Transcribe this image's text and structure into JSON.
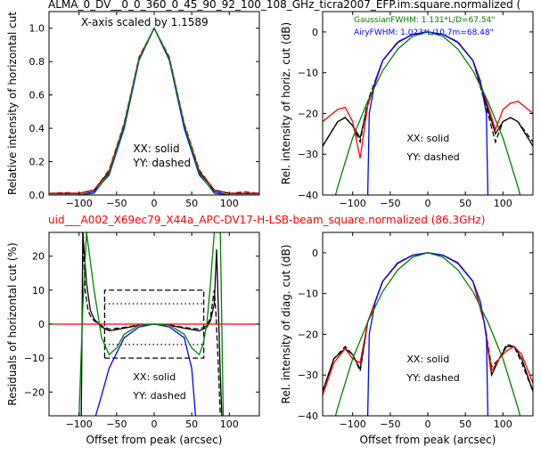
{
  "figure": {
    "top_title": "ALMA_0_DV__0_0_360_0_45_90_92_100_108_GHz_ticra2007_EFP.im.square.normalized (",
    "mid_title": "uid___A002_X69ec79_X44a_APC-DV17-H-LSB-beam_square.normalized (86.3GHz)",
    "mid_title_color": "#ff0000"
  },
  "chart_data": [
    {
      "type": "line",
      "id": "top-left",
      "annotation": "X-axis scaled by 1.1589",
      "xlim": [
        -140,
        140
      ],
      "ylim": [
        0,
        1.1
      ],
      "xticks": [
        -100,
        -50,
        0,
        50,
        100
      ],
      "yticks": [
        0.0,
        0.2,
        0.4,
        0.6,
        0.8,
        1.0
      ],
      "xtick_labels": [
        "−100",
        "−50",
        "0",
        "50",
        "100"
      ],
      "ytick_labels": [
        "0.0",
        "0.2",
        "0.4",
        "0.6",
        "0.8",
        "1.0"
      ],
      "ylabel": "Relative intensity of horizontal cut",
      "xlabel": "",
      "text": [
        "XX: solid",
        "YY: dashed"
      ],
      "series": [
        {
          "color": "#000000",
          "style": "solid",
          "x": [
            -140,
            -120,
            -100,
            -80,
            -60,
            -40,
            -20,
            0,
            20,
            40,
            60,
            80,
            100,
            120,
            140
          ],
          "y": [
            0.01,
            0.01,
            0.01,
            0.03,
            0.14,
            0.42,
            0.82,
            1.0,
            0.82,
            0.42,
            0.14,
            0.03,
            0.01,
            0.01,
            0.01
          ]
        },
        {
          "color": "#000000",
          "style": "dashed",
          "x": [
            -140,
            -120,
            -100,
            -80,
            -60,
            -40,
            -20,
            0,
            20,
            40,
            60,
            80,
            100,
            120,
            140
          ],
          "y": [
            0.01,
            0.01,
            0.01,
            0.03,
            0.15,
            0.43,
            0.82,
            1.0,
            0.82,
            0.43,
            0.15,
            0.03,
            0.01,
            0.01,
            0.01
          ]
        },
        {
          "color": "#ff0000",
          "style": "dashed",
          "x": [
            -140,
            -120,
            -100,
            -80,
            -60,
            -40,
            -20,
            0,
            20,
            40,
            60,
            80,
            100,
            120,
            140
          ],
          "y": [
            0.01,
            0.015,
            0.01,
            0.03,
            0.15,
            0.43,
            0.83,
            1.0,
            0.83,
            0.43,
            0.15,
            0.03,
            0.01,
            0.02,
            0.01
          ]
        },
        {
          "color": "#0000ff",
          "style": "solid",
          "x": [
            -140,
            -120,
            -100,
            -80,
            -60,
            -40,
            -20,
            0,
            20,
            40,
            60,
            80,
            100,
            120,
            140
          ],
          "y": [
            0.0,
            0.0,
            0.0,
            0.02,
            0.12,
            0.4,
            0.81,
            1.0,
            0.81,
            0.4,
            0.12,
            0.02,
            0.0,
            0.0,
            0.0
          ]
        },
        {
          "color": "#008000",
          "style": "solid",
          "x": [
            -140,
            -120,
            -100,
            -80,
            -60,
            -40,
            -20,
            0,
            20,
            40,
            60,
            80,
            100,
            120,
            140
          ],
          "y": [
            0.0,
            0.0,
            0.0,
            0.01,
            0.13,
            0.42,
            0.82,
            1.0,
            0.82,
            0.42,
            0.13,
            0.01,
            0.0,
            0.0,
            0.0
          ]
        }
      ]
    },
    {
      "type": "line",
      "id": "top-right",
      "xlim": [
        -140,
        140
      ],
      "ylim": [
        -40,
        5
      ],
      "xticks": [
        -100,
        -50,
        0,
        50,
        100
      ],
      "yticks": [
        -40,
        -30,
        -20,
        -10,
        0
      ],
      "xtick_labels": [
        "−100",
        "−50",
        "0",
        "50",
        "100"
      ],
      "ytick_labels": [
        "−40",
        "−30",
        "−20",
        "−10",
        "0"
      ],
      "ylabel": "Rel. intensity of horiz. cut (dB)",
      "xlabel": "",
      "legend": [
        {
          "label": "GaussianFWHM: 1.131*L/D=67.54\"",
          "color": "#008000"
        },
        {
          "label": "AiryFWHM: 1.023*L/10.7m=68.48\"",
          "color": "#0000ff"
        }
      ],
      "text": [
        "XX: solid",
        "YY: dashed"
      ],
      "series": [
        {
          "color": "#000000",
          "style": "solid",
          "x": [
            -140,
            -120,
            -110,
            -100,
            -90,
            -80,
            -60,
            -40,
            -20,
            0,
            20,
            40,
            60,
            80,
            90,
            100,
            110,
            120,
            140
          ],
          "y": [
            -28,
            -22,
            -21,
            -23,
            -26,
            -18,
            -7,
            -2.5,
            -0.6,
            0,
            -0.6,
            -2.5,
            -7,
            -19,
            -25,
            -22,
            -21,
            -22,
            -28
          ]
        },
        {
          "color": "#000000",
          "style": "dashed",
          "x": [
            -140,
            -120,
            -110,
            -100,
            -90,
            -80,
            -60,
            -40,
            -20,
            0,
            20,
            40,
            60,
            80,
            90,
            100,
            110,
            120,
            140
          ],
          "y": [
            -28,
            -22,
            -21,
            -23,
            -27,
            -17,
            -7,
            -2.4,
            -0.6,
            0,
            -0.6,
            -2.4,
            -7,
            -20,
            -27,
            -22,
            -21,
            -22,
            -27
          ]
        },
        {
          "color": "#ff0000",
          "style": "solid",
          "x": [
            -140,
            -120,
            -110,
            -100,
            -90,
            -80,
            -60,
            -40,
            -20,
            0,
            20,
            40,
            60,
            80,
            90,
            100,
            110,
            120,
            140
          ],
          "y": [
            -22,
            -19,
            -18.5,
            -22,
            -31,
            -18,
            -7,
            -2.5,
            -0.6,
            0,
            -0.6,
            -2.5,
            -7,
            -18,
            -24,
            -19,
            -17.5,
            -17,
            -20
          ]
        },
        {
          "color": "#0000ff",
          "style": "solid",
          "x": [
            -80,
            -78,
            -70,
            -60,
            -40,
            -20,
            0,
            20,
            40,
            60,
            70,
            78,
            80
          ],
          "y": [
            -40,
            -20,
            -12,
            -7,
            -2.6,
            -0.6,
            0,
            -0.6,
            -2.6,
            -7,
            -12,
            -20,
            -40
          ]
        },
        {
          "color": "#008000",
          "style": "solid",
          "x": [
            -140,
            -120,
            -100,
            -80,
            -60,
            -40,
            -20,
            0,
            20,
            40,
            60,
            80,
            100,
            120,
            140
          ],
          "y": [
            -52,
            -38,
            -26,
            -17,
            -9.5,
            -4.2,
            -1.05,
            0,
            -1.05,
            -4.2,
            -9.5,
            -17,
            -26,
            -38,
            -52
          ]
        }
      ]
    },
    {
      "type": "line",
      "id": "bottom-left",
      "xlim": [
        -140,
        140
      ],
      "ylim": [
        -27,
        27
      ],
      "xticks": [
        -100,
        -50,
        0,
        50,
        100
      ],
      "yticks": [
        -20,
        -10,
        0,
        10,
        20
      ],
      "xtick_labels": [
        "−100",
        "−50",
        "0",
        "50",
        "100"
      ],
      "ytick_labels": [
        "−20",
        "−10",
        "0",
        "10",
        "20"
      ],
      "ylabel": "Residuals of horizontal cut (%)",
      "xlabel": "Offset from peak (arcsec)",
      "text": [
        "XX: solid",
        "YY: dashed"
      ],
      "series": [
        {
          "color": "#000000",
          "style": "solid",
          "x": [
            -97,
            -95,
            -90,
            -85,
            -80,
            -70,
            -60,
            -40,
            -20,
            0,
            20,
            40,
            60,
            70,
            75,
            80,
            83,
            85,
            88,
            90
          ],
          "y": [
            -27,
            27,
            12,
            4,
            1.5,
            -0.8,
            -2,
            -1.2,
            -0.3,
            0,
            -0.3,
            -1.2,
            -2,
            -1,
            1,
            6,
            22,
            8,
            -15,
            -27
          ]
        },
        {
          "color": "#000000",
          "style": "dashed",
          "x": [
            -95,
            -92,
            -88,
            -84,
            -80,
            -70,
            -60,
            -40,
            -20,
            0,
            20,
            40,
            60,
            70,
            75,
            80,
            82,
            85,
            88
          ],
          "y": [
            27,
            10,
            4,
            2,
            1,
            -0.5,
            -1.5,
            -1,
            -0.2,
            0,
            -0.2,
            -1,
            -1.5,
            -0.5,
            2,
            10,
            4,
            -10,
            -27
          ]
        },
        {
          "color": "#ff0000",
          "style": "solid",
          "x": [
            -140,
            140
          ],
          "y": [
            0,
            0
          ]
        },
        {
          "color": "#0000ff",
          "style": "solid",
          "x": [
            -78,
            -70,
            -60,
            -40,
            -20,
            0,
            20,
            40,
            50,
            55
          ],
          "y": [
            -27,
            -21,
            -13,
            -4,
            -0.8,
            0,
            -0.8,
            -4,
            -13,
            -27
          ]
        },
        {
          "color": "#008000",
          "style": "solid",
          "x": [
            -100,
            -95,
            -90,
            -80,
            -70,
            -60,
            -50,
            -40,
            -20,
            0,
            20,
            40,
            50,
            60,
            65,
            70,
            75,
            80,
            88,
            92
          ],
          "y": [
            -27,
            5,
            27,
            10,
            -4,
            -9,
            -7,
            -3,
            -0.3,
            0,
            -0.3,
            -3,
            -7,
            -9,
            -6,
            0,
            12,
            27,
            27,
            -27
          ]
        }
      ],
      "reference_lines": [
        {
          "color": "#000000",
          "style": "dashed",
          "x": [
            -66,
            -66,
            66,
            66,
            -66
          ],
          "y": [
            -10,
            10,
            10,
            -10,
            -10
          ]
        },
        {
          "color": "#000000",
          "style": "dotted",
          "x": [
            -66,
            66
          ],
          "y": [
            6,
            6
          ]
        },
        {
          "color": "#000000",
          "style": "dotted",
          "x": [
            -66,
            66
          ],
          "y": [
            -6,
            -6
          ]
        }
      ]
    },
    {
      "type": "line",
      "id": "bottom-right",
      "xlim": [
        -140,
        140
      ],
      "ylim": [
        -40,
        5
      ],
      "xticks": [
        -100,
        -50,
        0,
        50,
        100
      ],
      "yticks": [
        -40,
        -30,
        -20,
        -10,
        0
      ],
      "xtick_labels": [
        "−100",
        "−50",
        "0",
        "50",
        "100"
      ],
      "ytick_labels": [
        "−40",
        "−30",
        "−20",
        "−10",
        "0"
      ],
      "ylabel": "Rel. intensity of diag. cut (dB)",
      "xlabel": "Offset from peak (arcsec)",
      "text": [
        "XX: solid",
        "YY: dashed"
      ],
      "series": [
        {
          "color": "#000000",
          "style": "solid",
          "x": [
            -140,
            -125,
            -110,
            -100,
            -90,
            -80,
            -60,
            -40,
            -20,
            0,
            20,
            40,
            60,
            75,
            85,
            95,
            105,
            115,
            125,
            140
          ],
          "y": [
            -34,
            -26,
            -23.5,
            -25,
            -28.5,
            -17,
            -7,
            -2.5,
            -0.6,
            0,
            -0.6,
            -2.5,
            -7,
            -17,
            -30,
            -26,
            -23,
            -23,
            -26,
            -34
          ]
        },
        {
          "color": "#000000",
          "style": "dashed",
          "x": [
            -140,
            -125,
            -110,
            -100,
            -90,
            -80,
            -60,
            -40,
            -20,
            0,
            20,
            40,
            60,
            75,
            85,
            95,
            105,
            115,
            125,
            140
          ],
          "y": [
            -34,
            -26,
            -23,
            -25,
            -29,
            -17,
            -7,
            -2.4,
            -0.6,
            0,
            -0.6,
            -2.4,
            -7,
            -17,
            -28,
            -26,
            -22.5,
            -23,
            -27,
            -34
          ]
        },
        {
          "color": "#ff0000",
          "style": "solid",
          "x": [
            -140,
            -125,
            -110,
            -100,
            -90,
            -80,
            -60,
            -40,
            -20,
            0,
            20,
            40,
            60,
            75,
            85,
            95,
            105,
            115,
            125,
            140
          ],
          "y": [
            -35,
            -27,
            -23.5,
            -26,
            -27,
            -17,
            -7,
            -2.5,
            -0.6,
            0,
            -0.6,
            -2.5,
            -7,
            -17,
            -29,
            -26,
            -24,
            -23,
            -25,
            -32
          ]
        },
        {
          "color": "#0000ff",
          "style": "solid",
          "x": [
            -80,
            -78,
            -70,
            -60,
            -40,
            -20,
            0,
            20,
            40,
            60,
            70,
            78,
            80
          ],
          "y": [
            -40,
            -20,
            -12,
            -7,
            -2.6,
            -0.6,
            0,
            -0.6,
            -2.6,
            -7,
            -12,
            -20,
            -40
          ]
        },
        {
          "color": "#008000",
          "style": "solid",
          "x": [
            -140,
            -120,
            -100,
            -80,
            -60,
            -40,
            -20,
            0,
            20,
            40,
            60,
            80,
            100,
            120,
            140
          ],
          "y": [
            -52,
            -38,
            -26,
            -17,
            -9.5,
            -4.2,
            -1.05,
            0,
            -1.05,
            -4.2,
            -9.5,
            -17,
            -26,
            -38,
            -52
          ]
        }
      ]
    }
  ]
}
